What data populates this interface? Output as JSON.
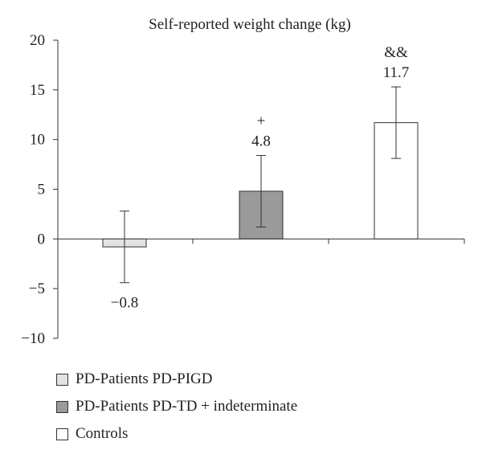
{
  "chart_data": {
    "type": "bar",
    "title": "Self-reported weight change (kg)",
    "xlabel": "",
    "ylabel": "",
    "ylim": [
      -10,
      20
    ],
    "yticks": [
      -10,
      -5,
      0,
      5,
      10,
      15,
      20
    ],
    "ytick_labels": [
      "−10",
      "−5",
      "0",
      "5",
      "10",
      "15",
      "20"
    ],
    "categories": [
      "PD-Patients PD-PIGD",
      "PD-Patients PD-TD + indeterminate",
      "Controls"
    ],
    "values": [
      -0.8,
      4.8,
      11.7
    ],
    "value_labels": [
      "−0.8",
      "4.8",
      "11.7"
    ],
    "error_low": [
      -4.4,
      1.2,
      8.1
    ],
    "error_high": [
      2.8,
      8.4,
      15.3
    ],
    "significance_markers": [
      "",
      "+",
      "&&"
    ],
    "colors": [
      "#e2e2e2",
      "#9a9a9a",
      "#ffffff"
    ],
    "legend": {
      "position": "bottom-left",
      "entries": [
        "PD-Patients PD-PIGD",
        "PD-Patients PD-TD + indeterminate",
        "Controls"
      ]
    },
    "grid": false
  }
}
